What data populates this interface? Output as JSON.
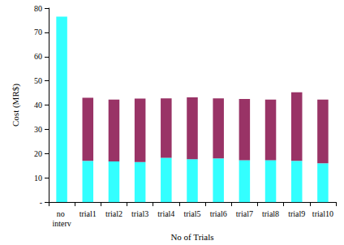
{
  "chart_data": {
    "type": "bar",
    "stacked": true,
    "grid": false,
    "x_label": "No of Trials",
    "y_label": "Cost (MR$)",
    "categories": [
      "no interv",
      "trial1",
      "trial2",
      "trial3",
      "trial4",
      "trial5",
      "trial6",
      "trial7",
      "trial8",
      "trial9",
      "trial10"
    ],
    "series": [
      {
        "color": "#33ffff",
        "values": [
          76.5,
          17,
          16.8,
          16.5,
          18.3,
          17.7,
          18,
          17.3,
          17.3,
          17,
          16
        ]
      },
      {
        "color": "#993366",
        "values": [
          null,
          26,
          25.5,
          26.2,
          24.5,
          25.5,
          24.8,
          25.2,
          25,
          28.3,
          26.3
        ]
      }
    ],
    "ylim": [
      0,
      80
    ],
    "yticks": [
      {
        "value": 0,
        "label": "-"
      },
      10,
      20,
      30,
      40,
      50,
      60,
      70,
      80
    ]
  }
}
